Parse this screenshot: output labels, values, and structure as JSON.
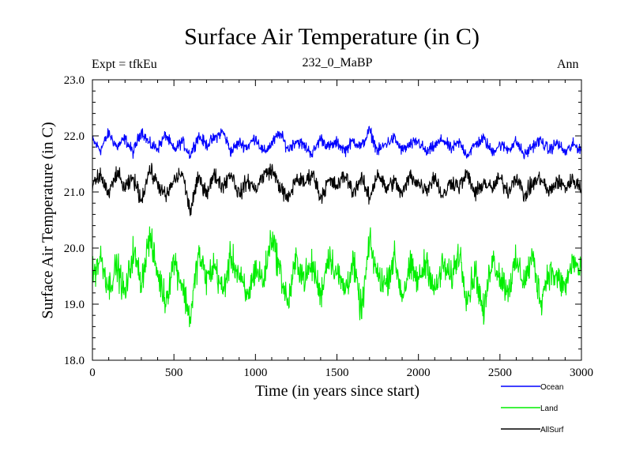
{
  "chart_data": {
    "type": "line",
    "title": "Surface Air Temperature (in C)",
    "experiment_label": "Expt = tfkEu",
    "subtitle": "232_0_MaBP",
    "season": "Ann",
    "xlabel": "Time (in years since start)",
    "ylabel": "Surface Air Temperature (in C)",
    "xlim": [
      0,
      3000
    ],
    "ylim": [
      18.0,
      23.0
    ],
    "x_ticks": [
      0,
      500,
      1000,
      1500,
      2000,
      2500,
      3000
    ],
    "x_tick_labels": [
      "0",
      "500",
      "1000",
      "1500",
      "2000",
      "2500",
      "3000"
    ],
    "y_ticks": [
      18.0,
      19.0,
      20.0,
      21.0,
      22.0,
      23.0
    ],
    "y_tick_labels": [
      "18.0",
      "19.0",
      "20.0",
      "21.0",
      "22.0",
      "23.0"
    ],
    "grid": false,
    "legend_position": "bottom-right",
    "x": [
      0,
      50,
      100,
      150,
      200,
      250,
      300,
      350,
      400,
      450,
      500,
      550,
      600,
      650,
      700,
      750,
      800,
      850,
      900,
      950,
      1000,
      1050,
      1100,
      1150,
      1200,
      1250,
      1300,
      1350,
      1400,
      1450,
      1500,
      1550,
      1600,
      1650,
      1700,
      1750,
      1800,
      1850,
      1900,
      1950,
      2000,
      2050,
      2100,
      2150,
      2200,
      2250,
      2300,
      2350,
      2400,
      2450,
      2500,
      2550,
      2600,
      2650,
      2700,
      2750,
      2800,
      2850,
      2900,
      2950,
      3000
    ],
    "series": [
      {
        "name": "Ocean",
        "color": "#0000ff",
        "values": [
          21.92,
          21.75,
          22.05,
          21.8,
          21.95,
          21.7,
          22.1,
          21.85,
          21.78,
          22.02,
          21.74,
          21.9,
          21.66,
          22.0,
          21.84,
          21.96,
          22.08,
          21.72,
          21.88,
          21.8,
          21.98,
          21.7,
          21.86,
          22.05,
          21.76,
          21.92,
          21.82,
          21.68,
          21.96,
          21.8,
          21.88,
          21.74,
          21.92,
          21.8,
          22.1,
          21.72,
          21.86,
          21.96,
          21.74,
          21.84,
          21.9,
          21.7,
          21.82,
          21.94,
          21.76,
          21.88,
          21.66,
          21.85,
          21.95,
          21.72,
          21.84,
          21.76,
          21.9,
          21.65,
          21.82,
          21.92,
          21.74,
          21.88,
          21.7,
          21.84,
          21.76
        ]
      },
      {
        "name": "Land",
        "color": "#00ee00",
        "values": [
          19.5,
          19.85,
          19.3,
          19.7,
          19.15,
          19.95,
          19.4,
          20.2,
          19.55,
          19.05,
          19.8,
          19.35,
          18.75,
          19.9,
          19.45,
          19.7,
          19.2,
          19.85,
          19.5,
          19.1,
          19.65,
          19.4,
          20.25,
          19.6,
          19.0,
          19.8,
          19.45,
          19.7,
          19.15,
          19.9,
          19.55,
          19.25,
          19.75,
          18.85,
          20.1,
          19.5,
          19.35,
          19.85,
          19.15,
          19.65,
          19.4,
          19.8,
          19.2,
          19.7,
          19.45,
          19.95,
          19.1,
          19.6,
          18.8,
          19.85,
          19.5,
          19.25,
          19.75,
          19.4,
          19.85,
          19.05,
          19.6,
          19.45,
          19.3,
          19.8,
          19.5
        ]
      },
      {
        "name": "AllSurf",
        "color": "#000000",
        "values": [
          21.1,
          21.3,
          20.95,
          21.35,
          21.05,
          21.25,
          20.85,
          21.4,
          21.15,
          20.9,
          21.2,
          21.35,
          20.65,
          21.25,
          21.0,
          21.3,
          21.1,
          21.35,
          20.95,
          21.2,
          21.05,
          21.3,
          21.4,
          21.1,
          20.85,
          21.25,
          21.15,
          21.35,
          20.9,
          21.2,
          21.1,
          21.3,
          21.0,
          21.25,
          20.88,
          21.35,
          21.05,
          21.2,
          20.95,
          21.3,
          21.15,
          21.05,
          21.28,
          20.9,
          21.2,
          21.1,
          21.32,
          20.95,
          21.18,
          21.05,
          21.25,
          21.0,
          21.3,
          20.92,
          21.15,
          21.25,
          20.98,
          21.2,
          21.08,
          21.22,
          21.05
        ]
      }
    ]
  }
}
